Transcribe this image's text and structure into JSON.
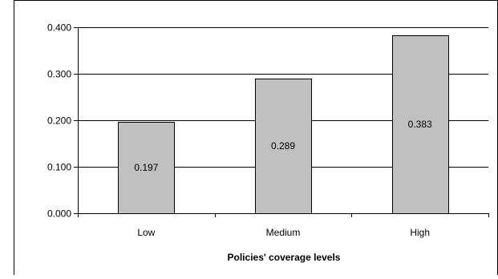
{
  "chart_data": {
    "type": "bar",
    "categories": [
      "Low",
      "Medium",
      "High"
    ],
    "values": [
      0.197,
      0.289,
      0.383
    ],
    "data_labels": [
      "0.197",
      "0.289",
      "0.383"
    ],
    "title": "",
    "xlabel": "Policies' coverage levels",
    "ylabel": "",
    "ylim": [
      0,
      0.4
    ],
    "yticks": [
      0,
      0.1,
      0.2,
      0.3,
      0.4
    ],
    "ytick_labels": [
      "0.000",
      "0.100",
      "0.200",
      "0.300",
      "0.400"
    ],
    "grid": true,
    "legend": "none",
    "colors": {
      "bar_fill": "#c0c0c0",
      "bar_stroke": "#000000",
      "gridline": "#000000",
      "axis": "#000000",
      "frame": "#000000"
    }
  }
}
